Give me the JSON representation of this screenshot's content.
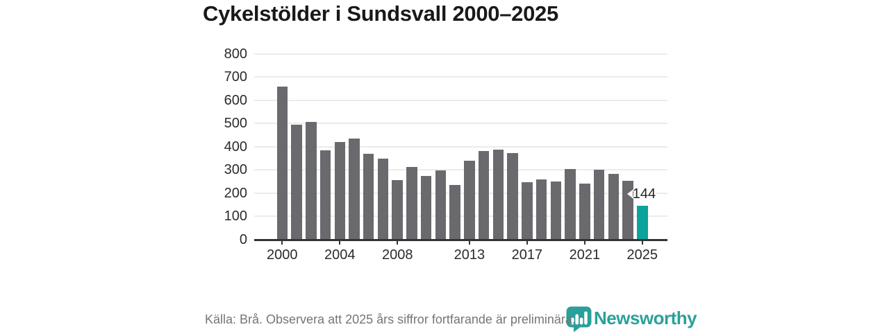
{
  "title": "Cykelstölder i Sundsvall 2000–2025",
  "chart_data": {
    "type": "bar",
    "title": "Cykelstölder i Sundsvall 2000–2025",
    "x": [
      2000,
      2001,
      2002,
      2003,
      2004,
      2005,
      2006,
      2007,
      2008,
      2009,
      2010,
      2011,
      2012,
      2013,
      2014,
      2015,
      2016,
      2017,
      2018,
      2019,
      2020,
      2021,
      2022,
      2023,
      2024,
      2025
    ],
    "values": [
      660,
      495,
      507,
      384,
      419,
      436,
      368,
      347,
      257,
      314,
      274,
      297,
      234,
      338,
      381,
      388,
      371,
      248,
      258,
      249,
      303,
      241,
      301,
      282,
      252,
      144
    ],
    "highlight": {
      "year": 2025,
      "label": "144"
    },
    "xlabel": "",
    "ylabel": "",
    "ylim": [
      0,
      800
    ],
    "yticks": [
      0,
      100,
      200,
      300,
      400,
      500,
      600,
      700,
      800
    ],
    "xticks": [
      2000,
      2004,
      2008,
      2013,
      2017,
      2021,
      2025
    ],
    "grid": true,
    "legend": "none",
    "bar_color": "#6a696e",
    "highlight_color": "#0ba39b"
  },
  "footer": {
    "source_note": "Källa: Brå. Observera att 2025 års siffror fortfarande är preliminära."
  },
  "logo": {
    "brand": "Newsworthy",
    "icon": "bar-chart-badge-icon",
    "color": "#2aa099"
  },
  "colors": {
    "background": "#ffffff",
    "title_text": "#191919",
    "axis_text": "#2b2b2b",
    "axis_line": "#333333",
    "gridline": "#ebebeb",
    "bar_gray": "#6a696e",
    "bar_teal": "#0ba39b",
    "footer_text": "#757575",
    "logo_teal": "#2aa099"
  }
}
